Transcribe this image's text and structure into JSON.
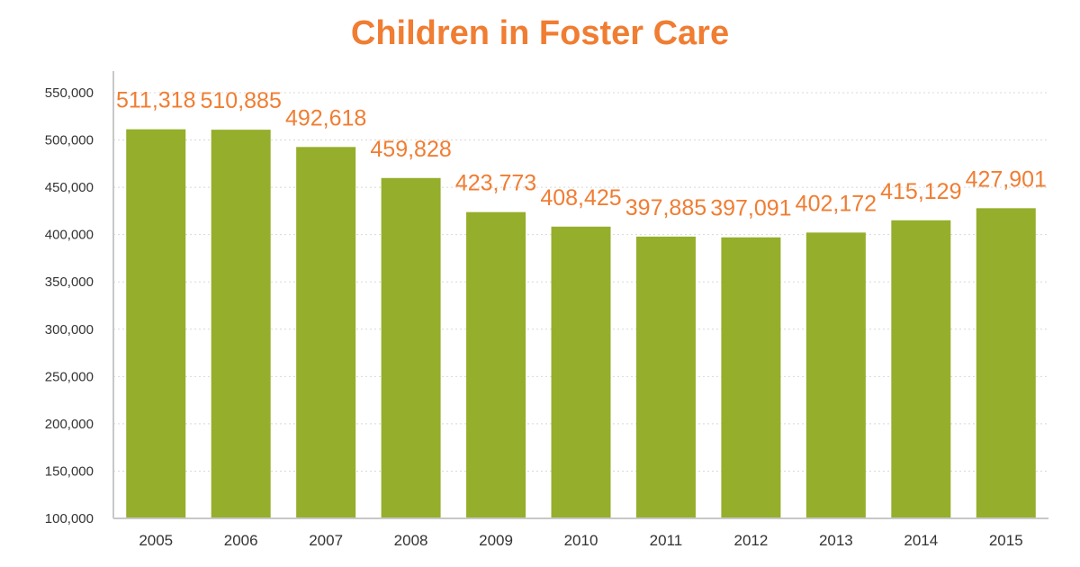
{
  "colors": {
    "title": "#f07d32",
    "bar": "#95ae2c",
    "data_label": "#f07d32",
    "grid": "#d8d8d8",
    "axis": "#c8c8c8"
  },
  "chart_data": {
    "type": "bar",
    "title": "Children in Foster Care",
    "xlabel": "",
    "ylabel": "",
    "categories": [
      "2005",
      "2006",
      "2007",
      "2008",
      "2009",
      "2010",
      "2011",
      "2012",
      "2013",
      "2014",
      "2015"
    ],
    "values": [
      511318,
      510885,
      492618,
      459828,
      423773,
      408425,
      397885,
      397091,
      402172,
      415129,
      427901
    ],
    "value_labels": [
      "511,318",
      "510,885",
      "492,618",
      "459,828",
      "423,773",
      "408,425",
      "397,885",
      "397,091",
      "402,172",
      "415,129",
      "427,901"
    ],
    "ylim": [
      100000,
      550000
    ],
    "yticks": [
      100000,
      150000,
      200000,
      250000,
      300000,
      350000,
      400000,
      450000,
      500000,
      550000
    ],
    "ytick_labels": [
      "100,000",
      "150,000",
      "200,000",
      "250,000",
      "300,000",
      "350,000",
      "400,000",
      "450,000",
      "500,000",
      "550,000"
    ],
    "grid": true,
    "grid_style": "dotted",
    "legend": "none"
  }
}
